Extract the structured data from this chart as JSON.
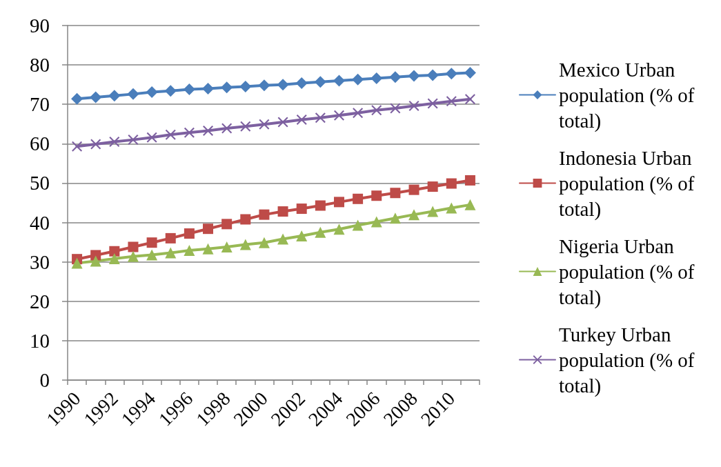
{
  "chart_data": {
    "type": "line",
    "categories": [
      "1990",
      null,
      "1992",
      null,
      "1994",
      null,
      "1996",
      null,
      "1998",
      null,
      "2000",
      null,
      "2002",
      null,
      "2004",
      null,
      "2006",
      null,
      "2008",
      null,
      "2010",
      null
    ],
    "series": [
      {
        "name": "Mexico Urban population (% of total)",
        "color": "#4a7ebb",
        "marker": "diamond",
        "values": [
          71.4,
          71.8,
          72.2,
          72.6,
          73.1,
          73.4,
          73.8,
          74.0,
          74.3,
          74.5,
          74.8,
          75.0,
          75.4,
          75.7,
          76.0,
          76.3,
          76.6,
          76.9,
          77.2,
          77.4,
          77.8,
          78.0
        ]
      },
      {
        "name": "Indonesia Urban population (% of total)",
        "color": "#be4b48",
        "marker": "square",
        "values": [
          30.7,
          31.7,
          32.7,
          33.8,
          34.9,
          36.0,
          37.2,
          38.4,
          39.6,
          40.8,
          42.0,
          42.8,
          43.5,
          44.3,
          45.2,
          46.0,
          46.8,
          47.5,
          48.3,
          49.1,
          49.9,
          50.7
        ]
      },
      {
        "name": "Nigeria Urban population (% of total)",
        "color": "#98b954",
        "marker": "triangle",
        "values": [
          29.7,
          30.2,
          30.8,
          31.4,
          31.8,
          32.3,
          32.9,
          33.3,
          33.8,
          34.4,
          34.9,
          35.8,
          36.6,
          37.5,
          38.3,
          39.3,
          40.2,
          41.1,
          42.0,
          42.8,
          43.7,
          44.5
        ]
      },
      {
        "name": "Turkey Urban population (% of total)",
        "color": "#7d60a0",
        "marker": "cross",
        "values": [
          59.3,
          59.9,
          60.5,
          61.0,
          61.6,
          62.3,
          62.8,
          63.3,
          63.9,
          64.4,
          64.9,
          65.5,
          66.1,
          66.6,
          67.2,
          67.8,
          68.5,
          69.0,
          69.6,
          70.2,
          70.8,
          71.3
        ]
      }
    ],
    "ylim": [
      0,
      90
    ],
    "yticks": [
      0,
      10,
      20,
      30,
      40,
      50,
      60,
      70,
      80,
      90
    ],
    "grid": "y",
    "legend": "right"
  }
}
